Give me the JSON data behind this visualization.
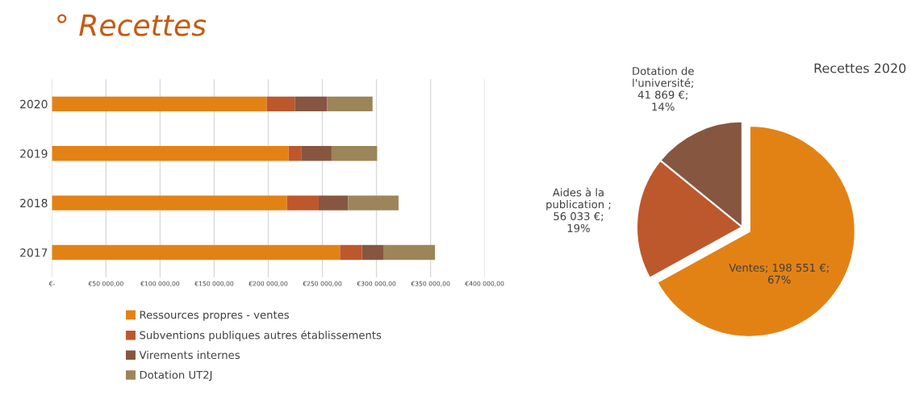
{
  "chart_data": [
    {
      "type": "bar",
      "title": "° Recettes",
      "orientation": "horizontal",
      "stacked": true,
      "categories": [
        "2020",
        "2019",
        "2018",
        "2017"
      ],
      "series": [
        {
          "name": "Ressources propres - ventes",
          "color": "#e38214",
          "values": [
            198500,
            218800,
            217300,
            266300
          ]
        },
        {
          "name": "Subventions publiques autres établissements",
          "color": "#bd582c",
          "values": [
            26000,
            11600,
            29300,
            20300
          ]
        },
        {
          "name": "Virements internes",
          "color": "#865640",
          "values": [
            30000,
            28100,
            27200,
            19700
          ]
        },
        {
          "name": "Dotation UT2J",
          "color": "#9c8558",
          "values": [
            41900,
            42100,
            46600,
            47800
          ]
        }
      ],
      "xlim": [
        0,
        400000
      ],
      "xticks": [
        {
          "value": 0,
          "label": "€-"
        },
        {
          "value": 50000,
          "label": "€50 000,00"
        },
        {
          "value": 100000,
          "label": "€100 000,00"
        },
        {
          "value": 150000,
          "label": "€150 000,00"
        },
        {
          "value": 200000,
          "label": "€200 000,00"
        },
        {
          "value": 250000,
          "label": "€250 000,00"
        },
        {
          "value": 300000,
          "label": "€300 000,00"
        },
        {
          "value": 350000,
          "label": "€350 000,00"
        },
        {
          "value": 400000,
          "label": "€400 000,00"
        }
      ],
      "grid": "x",
      "legend": "bottom"
    },
    {
      "type": "pie",
      "title": "Recettes 2020",
      "categories": [
        "Ventes",
        "Aides à la\npublication",
        "Dotation de\nl'université"
      ],
      "values": [
        198551,
        56033,
        41869
      ],
      "value_labels": [
        "; 198 551 €;\n67%",
        " ;\n56 033 €;\n19%",
        ";\n41 869 €;\n14%"
      ],
      "colors": [
        "#e38214",
        "#bd582c",
        "#865640"
      ]
    }
  ]
}
